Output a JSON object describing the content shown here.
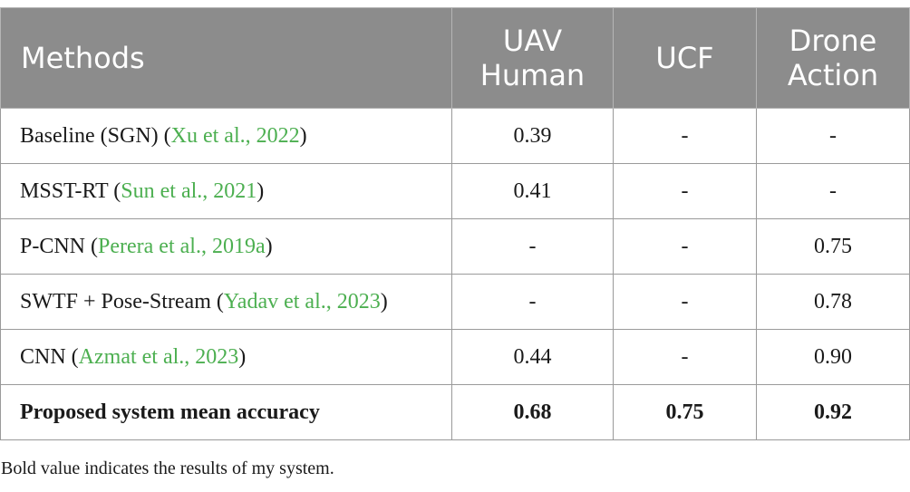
{
  "table": {
    "headers": {
      "methods": "Methods",
      "uav_human": [
        "UAV",
        "Human"
      ],
      "ucf": "UCF",
      "drone_action": [
        "Drone",
        "Action"
      ]
    },
    "rows": [
      {
        "method": "Baseline (SGN)",
        "cite_open": " (",
        "cite": "Xu et al., 2022",
        "cite_close": ")",
        "uav": "0.39",
        "ucf": "-",
        "drone": "-"
      },
      {
        "method": "MSST-RT",
        "cite_open": " (",
        "cite": "Sun et al., 2021",
        "cite_close": ")",
        "uav": "0.41",
        "ucf": "-",
        "drone": "-"
      },
      {
        "method": "P-CNN",
        "cite_open": " (",
        "cite": "Perera et al., 2019a",
        "cite_close": ")",
        "uav": "-",
        "ucf": "-",
        "drone": "0.75"
      },
      {
        "method": "SWTF + Pose-Stream",
        "cite_open": " (",
        "cite": "Yadav et al., 2023",
        "cite_close": ")",
        "uav": "-",
        "ucf": "-",
        "drone": "0.78"
      },
      {
        "method": "CNN",
        "cite_open": " (",
        "cite": "Azmat et al., 2023",
        "cite_close": ")",
        "uav": "0.44",
        "ucf": "-",
        "drone": "0.90"
      }
    ],
    "proposed": {
      "method": "Proposed system mean accuracy",
      "uav": "0.68",
      "ucf": "0.75",
      "drone": "0.92"
    }
  },
  "footnote": "Bold value indicates the results of my system.",
  "colors": {
    "header_bg": "#8c8c8c",
    "header_text": "#ffffff",
    "citation": "#4caf50",
    "border": "#9a9a9a"
  }
}
